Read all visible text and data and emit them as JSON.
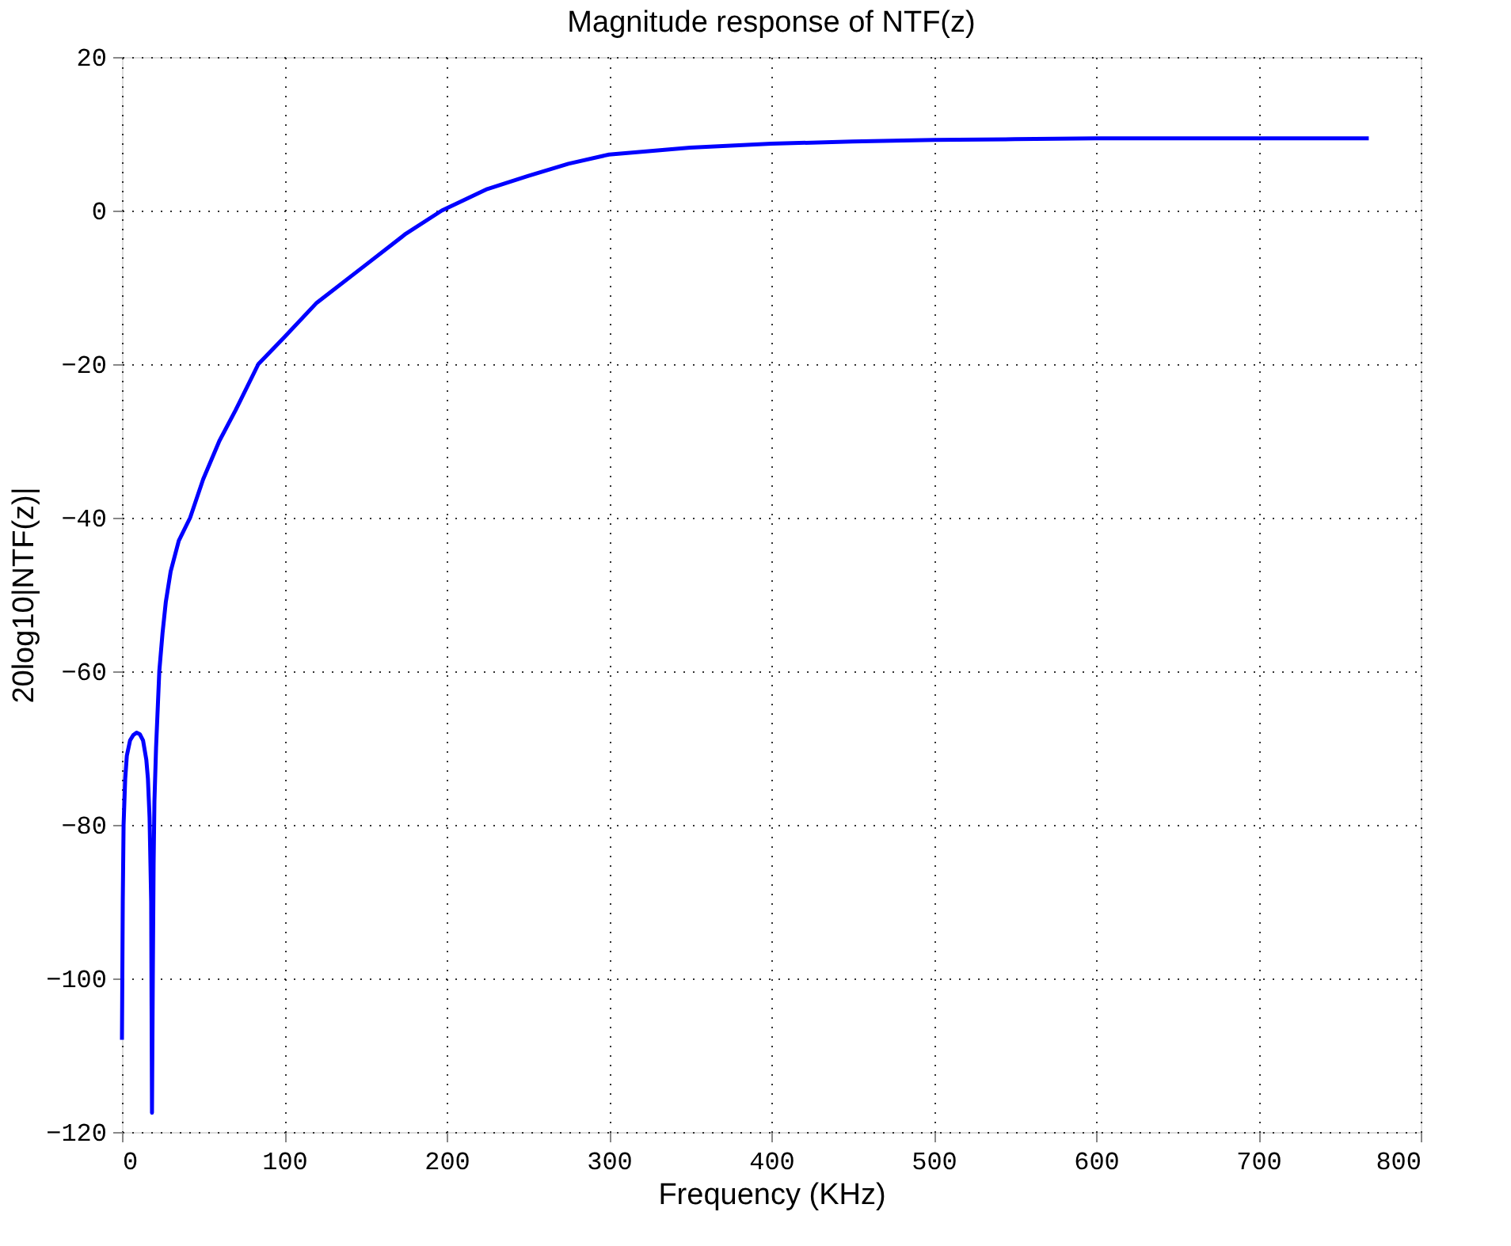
{
  "chart_data": {
    "type": "line",
    "title": "Magnitude response of NTF(z)",
    "xlabel": "Frequency (KHz)",
    "ylabel": "20log10|NTF(z)|",
    "x": [
      0,
      0.5,
      1,
      2,
      3,
      5,
      7,
      9,
      11,
      13,
      15,
      16,
      17,
      18,
      18.5,
      19,
      19.5,
      20,
      21,
      22,
      23,
      25,
      27,
      30,
      35,
      42,
      50,
      60,
      70,
      84,
      100,
      120,
      150,
      175,
      197,
      225,
      250,
      275,
      300,
      350,
      400,
      450,
      500,
      550,
      600,
      700,
      768
    ],
    "series": [
      {
        "color": "#0000ff",
        "values": [
          -108,
          -90,
          -80,
          -74,
          -71,
          -69,
          -68.3,
          -68,
          -68.2,
          -69,
          -71.5,
          -74,
          -79,
          -90,
          -117.5,
          -100,
          -85,
          -77,
          -70,
          -65,
          -60,
          -55,
          -51,
          -47,
          -43,
          -40,
          -35,
          -30,
          -26,
          -20,
          -16.5,
          -12,
          -7.1,
          -3,
          0,
          2.8,
          4.5,
          6.1,
          7.3,
          8.2,
          8.7,
          9.0,
          9.2,
          9.3,
          9.4,
          9.4,
          9.4
        ]
      }
    ],
    "xlim": [
      0,
      800
    ],
    "ylim": [
      -120,
      20
    ],
    "xticks": [
      0,
      100,
      200,
      300,
      400,
      500,
      600,
      700,
      800
    ],
    "yticks": [
      -120,
      -100,
      -80,
      -60,
      -40,
      -20,
      0,
      20
    ],
    "grid": true,
    "line_style": "solid",
    "marker": "none"
  }
}
